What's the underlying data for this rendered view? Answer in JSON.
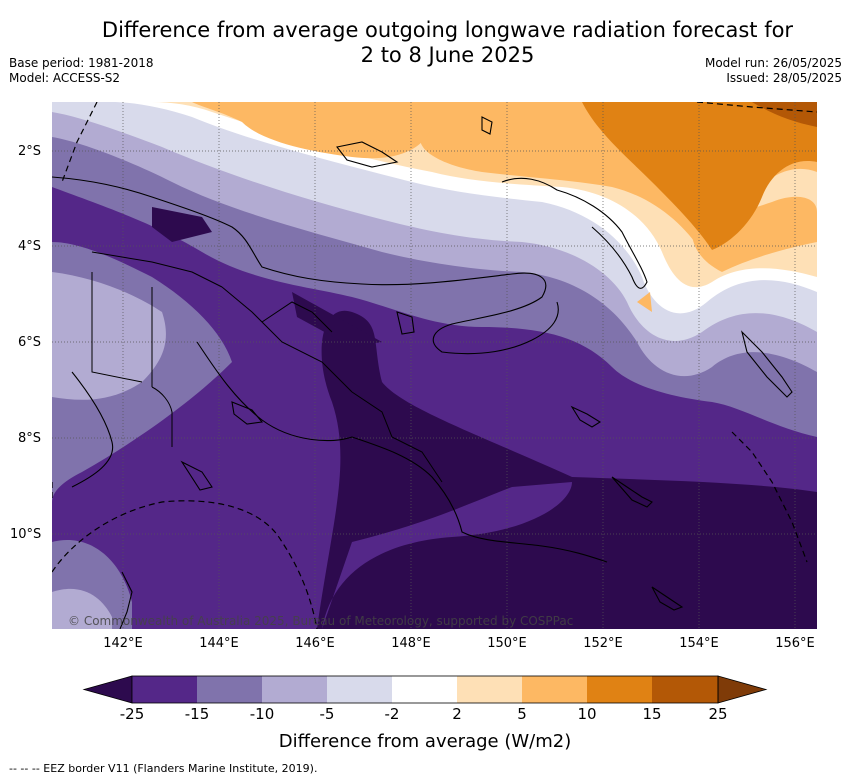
{
  "title_line1": "Difference from average outgoing longwave radiation forecast for",
  "title_line2": "2 to 8 June 2025",
  "base_period": "Base period: 1981-2018",
  "model": "Model: ACCESS-S2",
  "model_run": "Model run: 26/05/2025",
  "issued": "Issued: 28/05/2025",
  "lat_labels": [
    "2°S",
    "4°S",
    "6°S",
    "8°S",
    "10°S"
  ],
  "lon_labels": [
    "142°E",
    "144°E",
    "146°E",
    "148°E",
    "150°E",
    "152°E",
    "154°E",
    "156°E"
  ],
  "colorbar": {
    "ticks": [
      "-25",
      "-15",
      "-10",
      "-5",
      "-2",
      "2",
      "5",
      "10",
      "15",
      "25"
    ],
    "colors": [
      "#2d0a4e",
      "#542788",
      "#8073ac",
      "#b2abd2",
      "#d8daeb",
      "#ffffff",
      "#fee0b6",
      "#fdb863",
      "#e08214",
      "#b35806",
      "#7f3b08"
    ],
    "title": "Difference from average (W/m2)"
  },
  "copyright": "© Commonwealth of Australia 2025, Bureau of Meteorology, supported by COSPPac",
  "footer": "--  --  -- EEZ border V11 (Flanders Marine Institute, 2019)."
}
